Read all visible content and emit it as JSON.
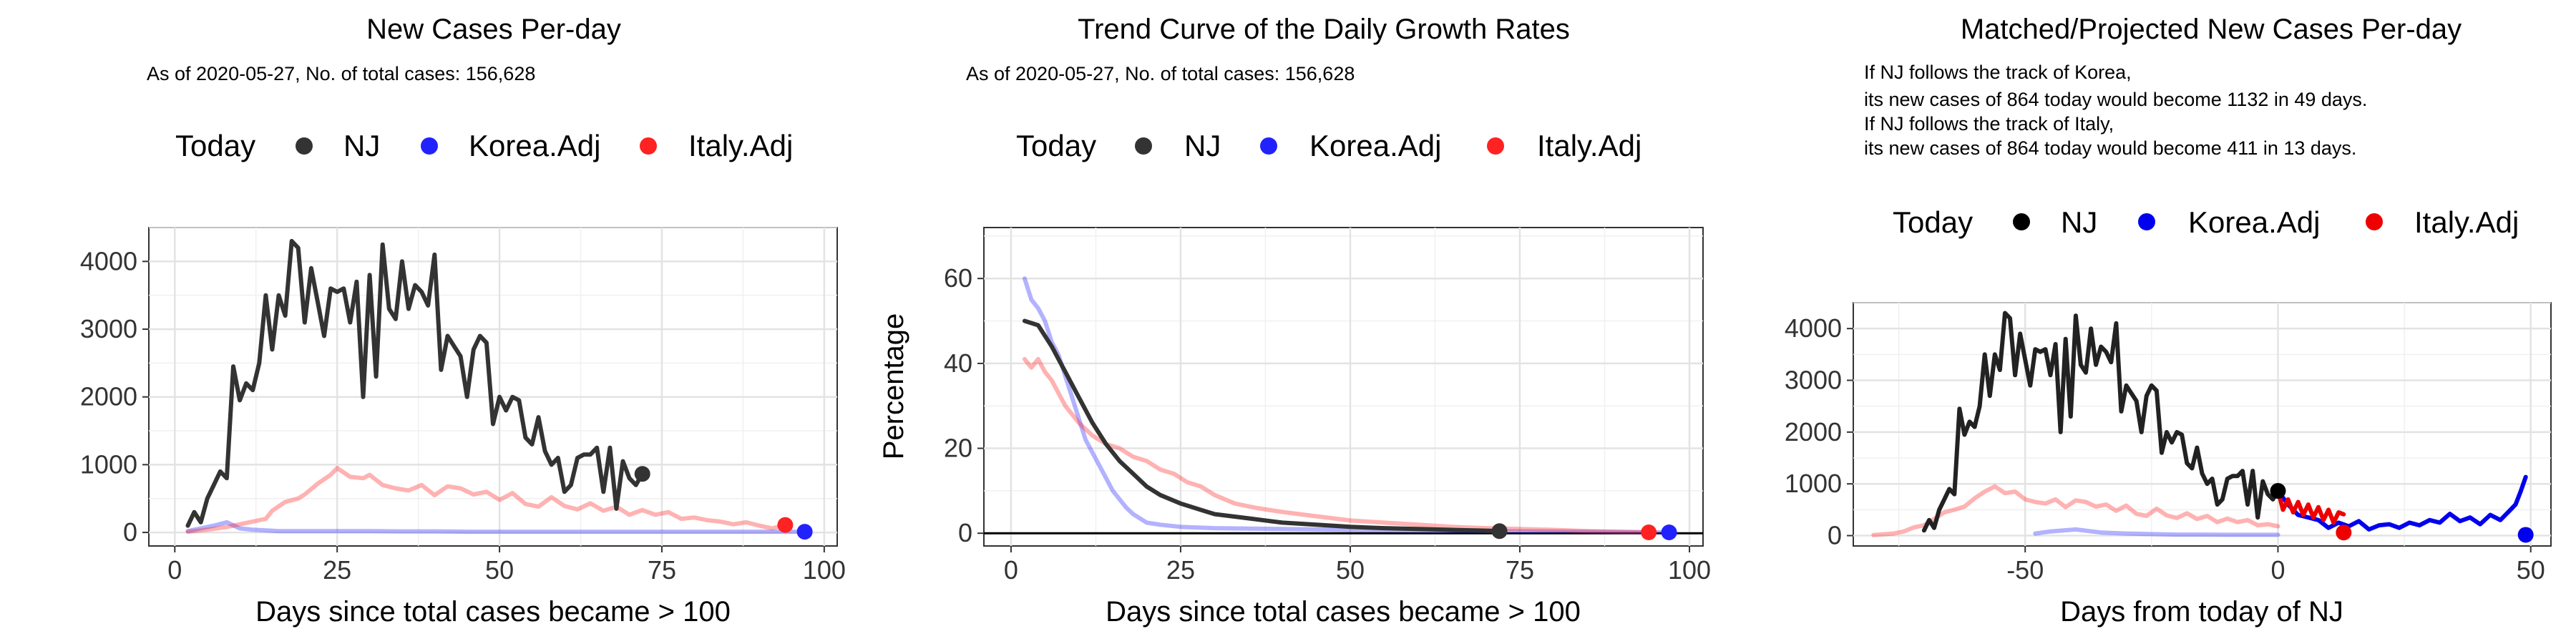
{
  "chart_data": [
    {
      "type": "line",
      "title": "New Cases Per-day",
      "subtitle": "As of 2020-05-27, No. of total cases: 156,628",
      "legend": {
        "title": "Today",
        "position": "top",
        "entries": [
          {
            "name": "NJ",
            "color": "#333333"
          },
          {
            "name": "Korea.Adj",
            "color": "#2222ff"
          },
          {
            "name": "Italy.Adj",
            "color": "#ff2222"
          }
        ]
      },
      "xlabel": "Days since total cases became > 100",
      "ylabel": "",
      "xlim": [
        -4,
        102
      ],
      "ylim": [
        -200,
        4500
      ],
      "xticks": [
        0,
        25,
        50,
        75,
        100
      ],
      "yticks": [
        0,
        1000,
        2000,
        3000,
        4000
      ],
      "grid": true,
      "series": [
        {
          "name": "NJ",
          "color": "#333333",
          "opacity": 1,
          "x": [
            2,
            3,
            4,
            5,
            6,
            7,
            8,
            9,
            10,
            11,
            12,
            13,
            14,
            15,
            16,
            17,
            18,
            19,
            20,
            21,
            22,
            23,
            24,
            25,
            26,
            27,
            28,
            29,
            30,
            31,
            32,
            33,
            34,
            35,
            36,
            37,
            38,
            39,
            40,
            41,
            42,
            43,
            44,
            45,
            46,
            47,
            48,
            49,
            50,
            51,
            52,
            53,
            54,
            55,
            56,
            57,
            58,
            59,
            60,
            61,
            62,
            63,
            64,
            65,
            66,
            67,
            68,
            69,
            70,
            71,
            72
          ],
          "y": [
            100,
            300,
            150,
            500,
            700,
            900,
            800,
            2450,
            1950,
            2200,
            2100,
            2500,
            3500,
            2700,
            3500,
            3200,
            4300,
            4200,
            3100,
            3900,
            3400,
            2900,
            3600,
            3550,
            3600,
            3100,
            3700,
            2000,
            3800,
            2300,
            4250,
            3300,
            3150,
            4000,
            3300,
            3650,
            3550,
            3350,
            4100,
            2400,
            2900,
            2750,
            2600,
            2000,
            2700,
            2900,
            2800,
            1600,
            2000,
            1800,
            2000,
            1950,
            1400,
            1300,
            1700,
            1200,
            1000,
            1100,
            600,
            700,
            1100,
            1150,
            1150,
            1250,
            600,
            1250,
            350,
            1050,
            800,
            700,
            864
          ]
        },
        {
          "name": "Korea.Adj",
          "color": "#2222ff",
          "opacity": 0.35,
          "x": [
            2,
            4,
            6,
            8,
            10,
            12,
            14,
            16,
            20,
            25,
            30,
            35,
            40,
            45,
            50,
            55,
            60,
            65,
            70,
            75,
            80,
            85,
            90,
            95,
            97
          ],
          "y": [
            20,
            60,
            100,
            150,
            60,
            40,
            30,
            20,
            20,
            20,
            20,
            15,
            15,
            10,
            10,
            10,
            10,
            10,
            10,
            10,
            10,
            10,
            10,
            10,
            10
          ]
        },
        {
          "name": "Italy.Adj",
          "color": "#ff2222",
          "opacity": 0.35,
          "x": [
            2,
            5,
            8,
            10,
            12,
            14,
            15,
            17,
            19,
            20,
            22,
            24,
            25,
            27,
            29,
            30,
            32,
            34,
            36,
            38,
            40,
            42,
            44,
            46,
            48,
            50,
            52,
            54,
            56,
            58,
            60,
            62,
            64,
            66,
            68,
            70,
            72,
            74,
            76,
            78,
            80,
            82,
            84,
            86,
            88,
            90,
            92,
            94
          ],
          "y": [
            10,
            40,
            80,
            120,
            160,
            200,
            320,
            450,
            500,
            560,
            720,
            850,
            950,
            820,
            800,
            850,
            700,
            650,
            620,
            700,
            550,
            680,
            650,
            560,
            600,
            480,
            580,
            420,
            380,
            520,
            390,
            340,
            430,
            320,
            380,
            260,
            330,
            260,
            300,
            200,
            220,
            180,
            160,
            120,
            150,
            100,
            60,
            110
          ]
        }
      ],
      "today_points": [
        {
          "name": "NJ",
          "x": 72,
          "y": 864,
          "color": "#333333"
        },
        {
          "name": "Korea.Adj",
          "x": 97,
          "y": 10,
          "color": "#2222ff"
        },
        {
          "name": "Italy.Adj",
          "x": 94,
          "y": 110,
          "color": "#ff2222"
        }
      ]
    },
    {
      "type": "line",
      "title": "Trend Curve of the Daily Growth Rates",
      "subtitle": "As of 2020-05-27, No. of total cases: 156,628",
      "legend": {
        "title": "Today",
        "position": "top",
        "entries": [
          {
            "name": "NJ",
            "color": "#333333"
          },
          {
            "name": "Korea.Adj",
            "color": "#2222ff"
          },
          {
            "name": "Italy.Adj",
            "color": "#ff2222"
          }
        ]
      },
      "xlabel": "Days since total cases became > 100",
      "ylabel": "Percentage",
      "xlim": [
        -4,
        102
      ],
      "ylim": [
        -3,
        72
      ],
      "xticks": [
        0,
        25,
        50,
        75,
        100
      ],
      "yticks": [
        0,
        20,
        40,
        60
      ],
      "grid": true,
      "hline": 0,
      "series": [
        {
          "name": "NJ",
          "color": "#333333",
          "opacity": 1,
          "x": [
            2,
            4,
            6,
            8,
            10,
            12,
            14,
            16,
            18,
            20,
            22,
            25,
            28,
            30,
            35,
            40,
            45,
            50,
            55,
            60,
            65,
            70,
            72
          ],
          "y": [
            50,
            49,
            44,
            38,
            32,
            26,
            21,
            17,
            14,
            11,
            9,
            7,
            5.5,
            4.5,
            3.5,
            2.5,
            2,
            1.5,
            1.2,
            1,
            0.8,
            0.6,
            0.5
          ]
        },
        {
          "name": "Korea.Adj",
          "color": "#2222ff",
          "opacity": 0.35,
          "x": [
            2,
            3,
            4,
            5,
            6,
            7,
            8,
            9,
            10,
            11,
            12,
            13,
            14,
            15,
            16,
            17,
            18,
            19,
            20,
            22,
            25,
            30,
            40,
            50,
            60,
            70,
            80,
            90,
            97
          ],
          "y": [
            60,
            55,
            53,
            50,
            45,
            42,
            37,
            32,
            27,
            22,
            19,
            16,
            13,
            10,
            8,
            6,
            4.5,
            3.5,
            2.5,
            2,
            1.5,
            1.2,
            1,
            0.8,
            0.6,
            0.5,
            0.4,
            0.3,
            0.2
          ]
        },
        {
          "name": "Italy.Adj",
          "color": "#ff2222",
          "opacity": 0.35,
          "x": [
            2,
            3,
            4,
            5,
            6,
            8,
            10,
            12,
            14,
            16,
            18,
            20,
            22,
            24,
            26,
            28,
            30,
            33,
            36,
            40,
            45,
            50,
            55,
            60,
            65,
            70,
            75,
            80,
            85,
            90,
            94
          ],
          "y": [
            41,
            39,
            41,
            38,
            36,
            30,
            26,
            23,
            21,
            20,
            18,
            17,
            15,
            14,
            12,
            11,
            9,
            7,
            6,
            5,
            4,
            3,
            2.5,
            2,
            1.5,
            1.2,
            1,
            0.8,
            0.5,
            0.3,
            0.2
          ]
        }
      ],
      "today_points": [
        {
          "name": "NJ",
          "x": 72,
          "y": 0.5,
          "color": "#333333"
        },
        {
          "name": "Korea.Adj",
          "x": 97,
          "y": 0.2,
          "color": "#2222ff"
        },
        {
          "name": "Italy.Adj",
          "x": 94,
          "y": 0.2,
          "color": "#ff2222"
        }
      ]
    },
    {
      "type": "line",
      "title": "Matched/Projected New Cases Per-day",
      "notes": [
        "If NJ follows the track of Korea,",
        "its new cases of 864 today would become 1132 in 49 days.",
        "If NJ follows the track of Italy,",
        "its new cases of 864 today would become 411 in 13 days."
      ],
      "legend": {
        "title": "Today",
        "position": "top",
        "entries": [
          {
            "name": "NJ",
            "color": "#000000"
          },
          {
            "name": "Korea.Adj",
            "color": "#0000ee"
          },
          {
            "name": "Italy.Adj",
            "color": "#ee0000"
          }
        ]
      },
      "xlabel": "Days from today of NJ",
      "ylabel": "",
      "xlim": [
        -84,
        54
      ],
      "ylim": [
        -200,
        4500
      ],
      "xticks": [
        -50,
        0,
        50
      ],
      "yticks": [
        0,
        1000,
        2000,
        3000,
        4000
      ],
      "grid": true,
      "series": [
        {
          "name": "NJ",
          "color": "#222222",
          "opacity": 1,
          "x": [
            -70,
            -69,
            -68,
            -67,
            -66,
            -65,
            -64,
            -63,
            -62,
            -61,
            -60,
            -59,
            -58,
            -57,
            -56,
            -55,
            -54,
            -53,
            -52,
            -51,
            -50,
            -49,
            -48,
            -47,
            -46,
            -45,
            -44,
            -43,
            -42,
            -41,
            -40,
            -39,
            -38,
            -37,
            -36,
            -35,
            -34,
            -33,
            -32,
            -31,
            -30,
            -29,
            -28,
            -27,
            -26,
            -25,
            -24,
            -23,
            -22,
            -21,
            -20,
            -19,
            -18,
            -17,
            -16,
            -15,
            -14,
            -13,
            -12,
            -11,
            -10,
            -9,
            -8,
            -7,
            -6,
            -5,
            -4,
            -3,
            -2,
            -1,
            0
          ],
          "y": [
            100,
            300,
            150,
            500,
            700,
            900,
            800,
            2450,
            1950,
            2200,
            2100,
            2500,
            3500,
            2700,
            3500,
            3200,
            4300,
            4200,
            3100,
            3900,
            3400,
            2900,
            3600,
            3550,
            3600,
            3100,
            3700,
            2000,
            3800,
            2300,
            4250,
            3300,
            3150,
            4000,
            3300,
            3650,
            3550,
            3350,
            4100,
            2400,
            2900,
            2750,
            2600,
            2000,
            2700,
            2900,
            2800,
            1600,
            2000,
            1800,
            2000,
            1950,
            1400,
            1300,
            1700,
            1200,
            1000,
            1100,
            600,
            700,
            1100,
            1150,
            1150,
            1250,
            600,
            1250,
            350,
            1050,
            800,
            700,
            864
          ]
        },
        {
          "name": "Korea.Adj",
          "color": "#2222ff",
          "opacity": 0.35,
          "x": [
            -48,
            -45,
            -40,
            -35,
            -30,
            -25,
            -20,
            -15,
            -10,
            -5,
            0
          ],
          "y": [
            40,
            80,
            120,
            60,
            40,
            30,
            20,
            20,
            15,
            15,
            15
          ]
        },
        {
          "name": "Italy.Adj",
          "color": "#ff2222",
          "opacity": 0.35,
          "x": [
            -80,
            -76,
            -74,
            -72,
            -70,
            -68,
            -66,
            -64,
            -62,
            -60,
            -58,
            -56,
            -54,
            -52,
            -50,
            -48,
            -46,
            -44,
            -42,
            -40,
            -38,
            -36,
            -34,
            -32,
            -30,
            -28,
            -26,
            -24,
            -22,
            -20,
            -18,
            -16,
            -14,
            -12,
            -10,
            -8,
            -6,
            -4,
            -2,
            0
          ],
          "y": [
            10,
            40,
            80,
            160,
            200,
            320,
            450,
            500,
            560,
            720,
            850,
            950,
            820,
            850,
            700,
            650,
            620,
            700,
            550,
            680,
            650,
            560,
            600,
            480,
            580,
            420,
            380,
            520,
            390,
            340,
            430,
            320,
            380,
            260,
            330,
            260,
            300,
            200,
            220,
            180
          ]
        },
        {
          "name": "Korea.Adj (projected)",
          "color": "#0000ee",
          "opacity": 1,
          "x": [
            0,
            2,
            4,
            6,
            8,
            10,
            12,
            14,
            16,
            18,
            20,
            22,
            24,
            26,
            28,
            30,
            32,
            34,
            36,
            38,
            40,
            42,
            44,
            46,
            47,
            48,
            49
          ],
          "y": [
            864,
            600,
            400,
            350,
            300,
            150,
            250,
            180,
            280,
            120,
            200,
            220,
            150,
            250,
            200,
            300,
            250,
            420,
            280,
            350,
            220,
            400,
            300,
            500,
            600,
            850,
            1132
          ]
        },
        {
          "name": "Italy.Adj (projected)",
          "color": "#ee0000",
          "opacity": 1,
          "x": [
            0,
            1,
            2,
            3,
            4,
            5,
            6,
            7,
            8,
            9,
            10,
            11,
            12,
            13
          ],
          "y": [
            864,
            500,
            700,
            450,
            650,
            400,
            600,
            350,
            550,
            300,
            500,
            250,
            450,
            411
          ]
        }
      ],
      "today_points": [
        {
          "name": "NJ",
          "x": 0,
          "y": 864,
          "color": "#000000"
        },
        {
          "name": "Korea.Adj",
          "x": 49,
          "y": 15,
          "color": "#0000ee"
        },
        {
          "name": "Italy.Adj",
          "x": 13,
          "y": 60,
          "color": "#ee0000"
        }
      ]
    }
  ]
}
